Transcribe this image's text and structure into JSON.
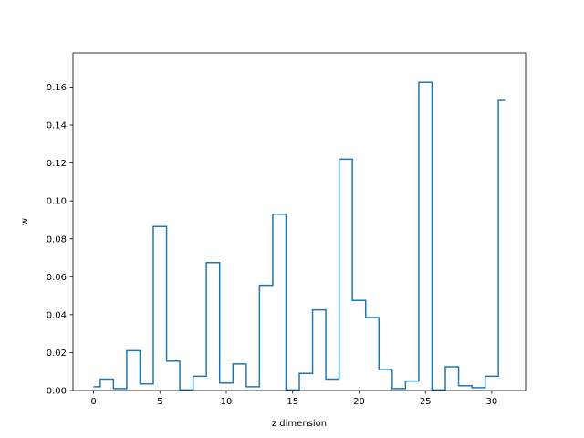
{
  "chart_data": {
    "type": "line",
    "drawstyle": "steps-mid",
    "xlabel": "z dimension",
    "ylabel": "w",
    "xlim": [
      -1.55,
      32.55
    ],
    "ylim": [
      0,
      0.178
    ],
    "x_ticks": [
      0,
      5,
      10,
      15,
      20,
      25,
      30
    ],
    "y_ticks": [
      0.0,
      0.02,
      0.04,
      0.06,
      0.08,
      0.1,
      0.12,
      0.14,
      0.16
    ],
    "x_tick_labels": [
      "0",
      "5",
      "10",
      "15",
      "20",
      "25",
      "30"
    ],
    "y_tick_labels": [
      "0.00",
      "0.02",
      "0.04",
      "0.06",
      "0.08",
      "0.10",
      "0.12",
      "0.14",
      "0.16"
    ],
    "grid": false,
    "line_color": "#1f77b4",
    "x": [
      0,
      1,
      2,
      3,
      4,
      5,
      6,
      7,
      8,
      9,
      10,
      11,
      12,
      13,
      14,
      15,
      16,
      17,
      18,
      19,
      20,
      21,
      22,
      23,
      24,
      25,
      26,
      27,
      28,
      29,
      30,
      31
    ],
    "values": [
      0.002,
      0.006,
      0.001,
      0.021,
      0.0035,
      0.0865,
      0.0155,
      0.0003,
      0.0075,
      0.0675,
      0.004,
      0.014,
      0.002,
      0.0555,
      0.093,
      0.0003,
      0.009,
      0.0425,
      0.006,
      0.122,
      0.0475,
      0.0385,
      0.011,
      0.001,
      0.005,
      0.1625,
      0.0003,
      0.0125,
      0.0025,
      0.0015,
      0.0075,
      0.153
    ]
  }
}
